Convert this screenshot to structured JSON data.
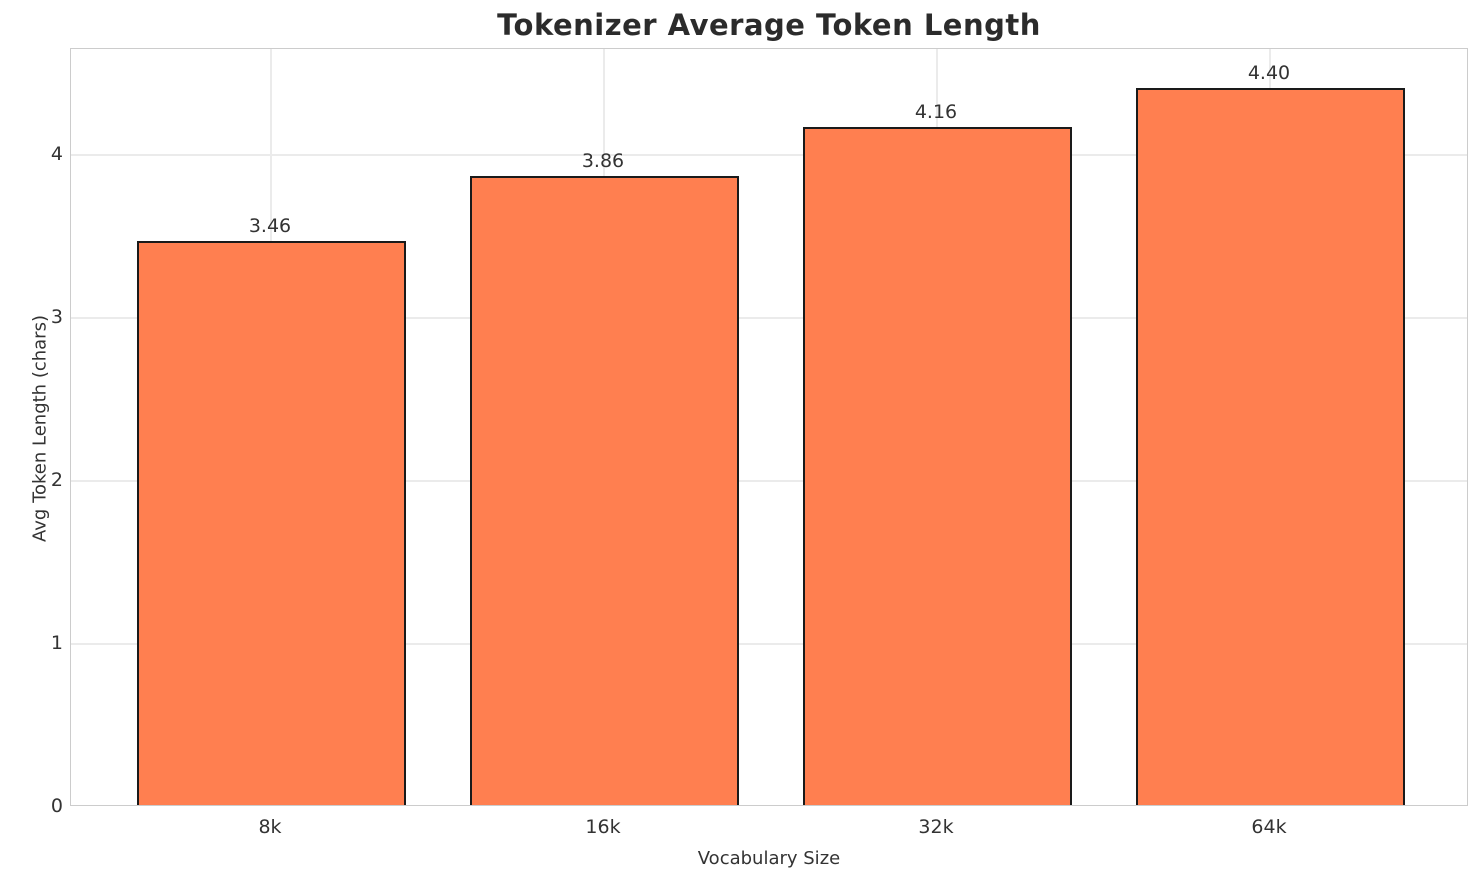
{
  "chart_data": {
    "type": "bar",
    "title": "Tokenizer Average Token Length",
    "categories": [
      "8k",
      "16k",
      "32k",
      "64k"
    ],
    "values": [
      3.46,
      3.86,
      4.16,
      4.4
    ],
    "value_labels": [
      "3.46",
      "3.86",
      "4.16",
      "4.40"
    ],
    "xlabel": "Vocabulary Size",
    "ylabel": "Avg Token Length (chars)",
    "ylim": [
      0,
      4.65
    ],
    "yticks": [
      0,
      1,
      2,
      3,
      4
    ],
    "grid": "both",
    "legend": "none",
    "bar_color": "#FF7F50",
    "bar_edge_color": "#1a1a1a",
    "grid_color": "#ebebeb",
    "spine_color": "#cccccc",
    "text_color": "#333333",
    "title_color": "#2b2b2b"
  }
}
